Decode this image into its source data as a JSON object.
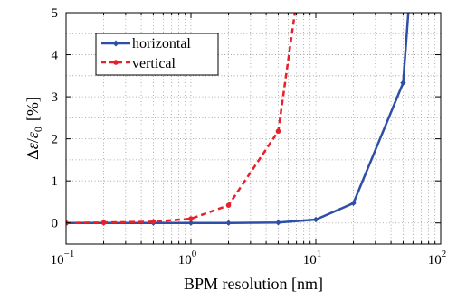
{
  "chart_data": {
    "type": "line",
    "xscale": "log",
    "xlim": [
      0.1,
      100
    ],
    "ylim": [
      -0.5,
      5
    ],
    "grid": true,
    "legend_position": "top-left",
    "xlabel": "BPM resolution [nm]",
    "ylabel": "Δε/ε0 [%]",
    "ylabel_parts": {
      "delta": "Δ",
      "eps": "ε",
      "slash": "/",
      "eps0_base": "ε",
      "eps0_sub": "0",
      "unit": "[%]"
    },
    "x_ticks": [
      {
        "base": "10",
        "exp": "−1",
        "value": 0.1
      },
      {
        "base": "10",
        "exp": "0",
        "value": 1
      },
      {
        "base": "10",
        "exp": "1",
        "value": 10
      },
      {
        "base": "10",
        "exp": "2",
        "value": 100
      }
    ],
    "y_ticks": [
      "0",
      "1",
      "2",
      "3",
      "4",
      "5"
    ],
    "series": [
      {
        "name": "horizontal",
        "color": "#2e4fa8",
        "style": "solid",
        "marker": "diamond",
        "x": [
          0.1,
          0.2,
          0.5,
          1,
          2,
          5,
          10,
          20,
          50,
          60
        ],
        "y": [
          0.0,
          0.0,
          0.0,
          0.0,
          0.0,
          0.01,
          0.08,
          0.47,
          3.33,
          6.5
        ]
      },
      {
        "name": "vertical",
        "color": "#e8202a",
        "style": "dashed",
        "marker": "circle",
        "x": [
          0.1,
          0.2,
          0.5,
          1,
          2,
          5,
          8
        ],
        "y": [
          0.0,
          0.01,
          0.03,
          0.1,
          0.42,
          2.18,
          6.5
        ]
      }
    ]
  }
}
